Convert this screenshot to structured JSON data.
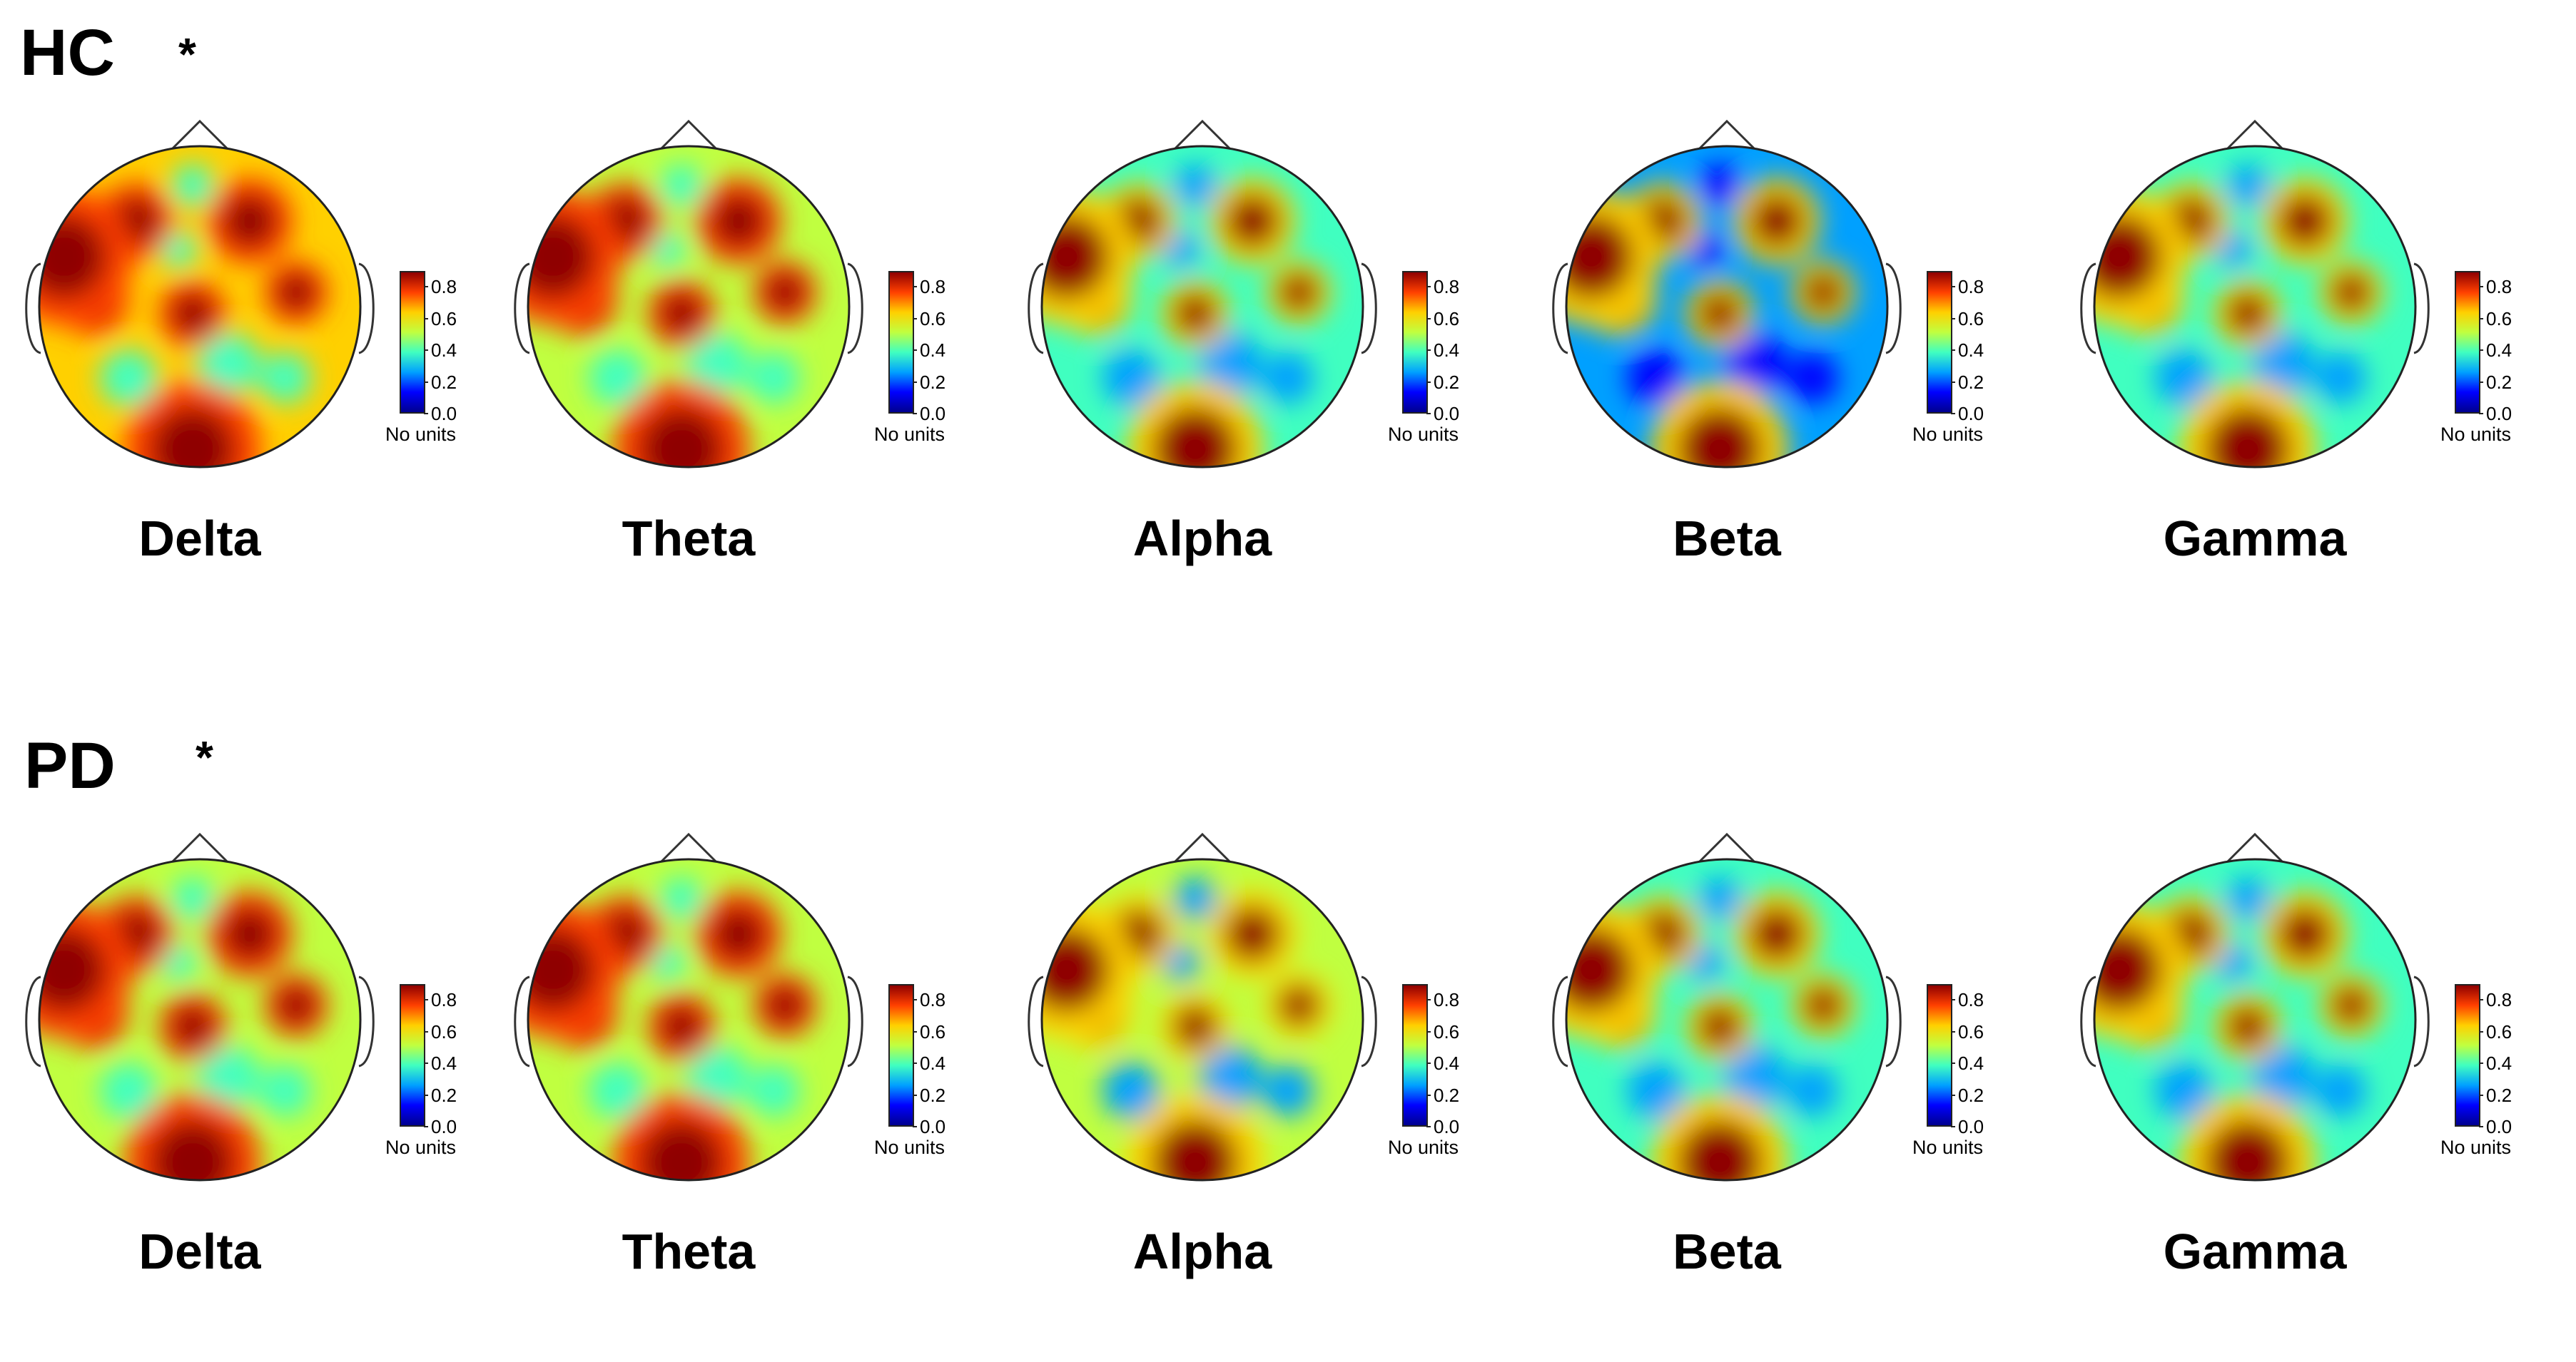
{
  "groups": [
    {
      "label": "HC",
      "marker": "*"
    },
    {
      "label": "PD",
      "marker": "*"
    }
  ],
  "bands": [
    "Delta",
    "Theta",
    "Alpha",
    "Beta",
    "Gamma"
  ],
  "colorbar": {
    "ticks": [
      "0.8",
      "0.6",
      "0.4",
      "0.2",
      "0.0"
    ],
    "units_label": "No units",
    "colormap": [
      "#00008f",
      "#0000ff",
      "#00a0ff",
      "#40ffc0",
      "#c0ff40",
      "#ffd000",
      "#ff4000",
      "#8f0000"
    ],
    "range": [
      0,
      0.9
    ]
  },
  "topomaps": {
    "HC": {
      "Delta": {
        "base": 0.6,
        "hot": 0.88
      },
      "Theta": {
        "base": 0.55,
        "hot": 0.85
      },
      "Alpha": {
        "base": 0.42,
        "hot": 0.85
      },
      "Beta": {
        "base": 0.3,
        "hot": 0.85
      },
      "Gamma": {
        "base": 0.4,
        "hot": 0.85
      }
    },
    "PD": {
      "Delta": {
        "base": 0.55,
        "hot": 0.85
      },
      "Theta": {
        "base": 0.5,
        "hot": 0.85
      },
      "Alpha": {
        "base": 0.45,
        "hot": 0.85
      },
      "Beta": {
        "base": 0.38,
        "hot": 0.85
      },
      "Gamma": {
        "base": 0.38,
        "hot": 0.85
      }
    }
  }
}
